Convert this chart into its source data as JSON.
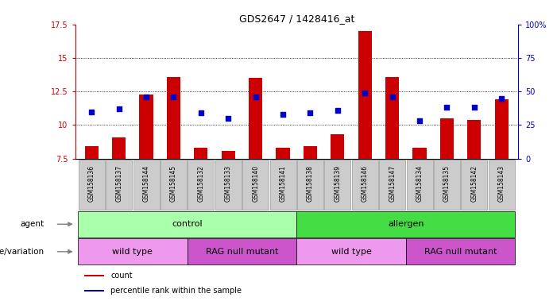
{
  "title": "GDS2647 / 1428416_at",
  "samples": [
    "GSM158136",
    "GSM158137",
    "GSM158144",
    "GSM158145",
    "GSM158132",
    "GSM158133",
    "GSM158140",
    "GSM158141",
    "GSM158138",
    "GSM158139",
    "GSM158146",
    "GSM158147",
    "GSM158134",
    "GSM158135",
    "GSM158142",
    "GSM158143"
  ],
  "count_values": [
    8.4,
    9.1,
    12.3,
    13.6,
    8.3,
    8.1,
    13.5,
    8.3,
    8.4,
    9.3,
    17.0,
    13.6,
    8.3,
    10.5,
    10.4,
    11.9
  ],
  "percentile_values": [
    35,
    37,
    46,
    46,
    34,
    30,
    46,
    33,
    34,
    36,
    49,
    46,
    28,
    38,
    38,
    45
  ],
  "ymin": 7.5,
  "ymax": 17.5,
  "y2min": 0,
  "y2max": 100,
  "yticks": [
    7.5,
    10.0,
    12.5,
    15.0,
    17.5
  ],
  "y2ticks": [
    0,
    25,
    50,
    75,
    100
  ],
  "ytick_labels": [
    "7.5",
    "10",
    "12.5",
    "15",
    "17.5"
  ],
  "y2tick_labels": [
    "0",
    "25",
    "50",
    "75",
    "100%"
  ],
  "hlines": [
    10.0,
    12.5,
    15.0
  ],
  "bar_color": "#cc0000",
  "dot_color": "#0000cc",
  "bar_width": 0.5,
  "agent_groups": [
    {
      "label": "control",
      "start": 0,
      "end": 8,
      "color": "#aaffaa"
    },
    {
      "label": "allergen",
      "start": 8,
      "end": 16,
      "color": "#44dd44"
    }
  ],
  "genotype_groups": [
    {
      "label": "wild type",
      "start": 0,
      "end": 4,
      "color": "#ee99ee"
    },
    {
      "label": "RAG null mutant",
      "start": 4,
      "end": 8,
      "color": "#cc55cc"
    },
    {
      "label": "wild type",
      "start": 8,
      "end": 12,
      "color": "#ee99ee"
    },
    {
      "label": "RAG null mutant",
      "start": 12,
      "end": 16,
      "color": "#cc55cc"
    }
  ],
  "legend_count_label": "count",
  "legend_pct_label": "percentile rank within the sample",
  "agent_label": "agent",
  "genotype_label": "genotype/variation",
  "left_axis_color": "#cc0000",
  "right_axis_color": "#0000cc",
  "bg_color": "#ffffff",
  "xticklabel_bg": "#cccccc",
  "xticklabel_border": "#999999"
}
